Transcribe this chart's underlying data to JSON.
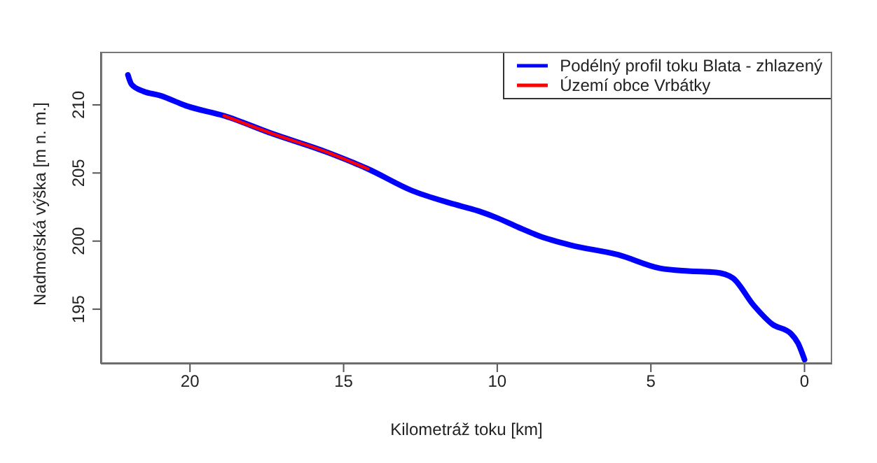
{
  "chart_data": {
    "type": "line",
    "xlabel": "Kilometráž toku [km]",
    "ylabel": "Nadmořská výška [m n. m.]",
    "xlim": [
      22.9,
      -0.9
    ],
    "xticks": [
      20,
      15,
      10,
      5,
      0
    ],
    "ylim": [
      191,
      213.9
    ],
    "yticks": [
      195,
      200,
      205,
      210
    ],
    "grid": false,
    "legend": "top right",
    "marker": "none",
    "line_style": "solid",
    "series": [
      {
        "name": "Podélný profil toku Blata - zhlazený",
        "color": "#0000ff",
        "x": [
          22.02,
          21.9,
          21.52,
          20.99,
          20.08,
          18.89,
          17.34,
          15.51,
          14.21,
          12.77,
          11.55,
          10.6,
          10,
          9.3,
          8.66,
          7.6,
          6.07,
          4.7,
          3.79,
          2.88,
          2.34,
          1.66,
          1.05,
          0.44,
          0.21,
          0
        ],
        "values": [
          212.2,
          211.5,
          211,
          210.7,
          209.9,
          209.2,
          207.9,
          206.5,
          205.3,
          203.7,
          202.8,
          202.2,
          201.7,
          201,
          200.4,
          199.7,
          199,
          198,
          197.8,
          197.7,
          197.3,
          195.3,
          193.9,
          193.2,
          192.5,
          191.3
        ]
      },
      {
        "name": "Území obce Vrbátky",
        "color": "#ff0000",
        "x": [
          18.89,
          17.34,
          15.51,
          14.21
        ],
        "values": [
          209.2,
          207.9,
          206.5,
          205.3
        ]
      }
    ]
  }
}
